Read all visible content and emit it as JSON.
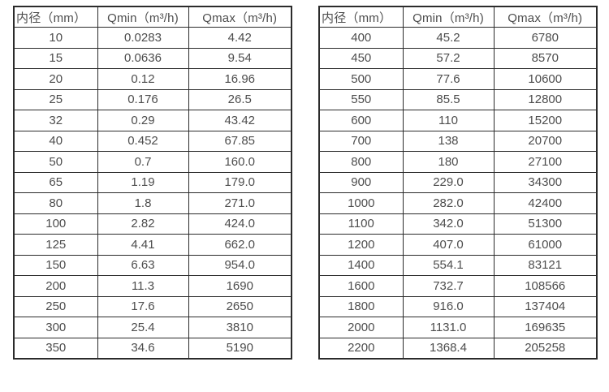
{
  "page": {
    "background_color": "#ffffff",
    "text_color": "#4d4d4d",
    "border_color": "#2b2b2b"
  },
  "tables": [
    {
      "name": "flow-range-table-small-diameters",
      "headers": [
        "内径（mm）",
        "Qmin（m³/h)",
        "Qmax（m³/h)"
      ],
      "rows": [
        [
          "10",
          "0.0283",
          "4.42"
        ],
        [
          "15",
          "0.0636",
          "9.54"
        ],
        [
          "20",
          "0.12",
          "16.96"
        ],
        [
          "25",
          "0.176",
          "26.5"
        ],
        [
          "32",
          "0.29",
          "43.42"
        ],
        [
          "40",
          "0.452",
          "67.85"
        ],
        [
          "50",
          "0.7",
          "160.0"
        ],
        [
          "65",
          "1.19",
          "179.0"
        ],
        [
          "80",
          "1.8",
          "271.0"
        ],
        [
          "100",
          "2.82",
          "424.0"
        ],
        [
          "125",
          "4.41",
          "662.0"
        ],
        [
          "150",
          "6.63",
          "954.0"
        ],
        [
          "200",
          "11.3",
          "1690"
        ],
        [
          "250",
          "17.6",
          "2650"
        ],
        [
          "300",
          "25.4",
          "3810"
        ],
        [
          "350",
          "34.6",
          "5190"
        ]
      ]
    },
    {
      "name": "flow-range-table-large-diameters",
      "headers": [
        "内径（mm）",
        "Qmin（m³/h)",
        "Qmax（m³/h)"
      ],
      "rows": [
        [
          "400",
          "45.2",
          "6780"
        ],
        [
          "450",
          "57.2",
          "8570"
        ],
        [
          "500",
          "77.6",
          "10600"
        ],
        [
          "550",
          "85.5",
          "12800"
        ],
        [
          "600",
          "110",
          "15200"
        ],
        [
          "700",
          "138",
          "20700"
        ],
        [
          "800",
          "180",
          "27100"
        ],
        [
          "900",
          "229.0",
          "34300"
        ],
        [
          "1000",
          "282.0",
          "42400"
        ],
        [
          "1100",
          "342.0",
          "51300"
        ],
        [
          "1200",
          "407.0",
          "61000"
        ],
        [
          "1400",
          "554.1",
          "83121"
        ],
        [
          "1600",
          "732.7",
          "108566"
        ],
        [
          "1800",
          "916.0",
          "137404"
        ],
        [
          "2000",
          "1131.0",
          "169635"
        ],
        [
          "2200",
          "1368.4",
          "205258"
        ]
      ]
    }
  ]
}
